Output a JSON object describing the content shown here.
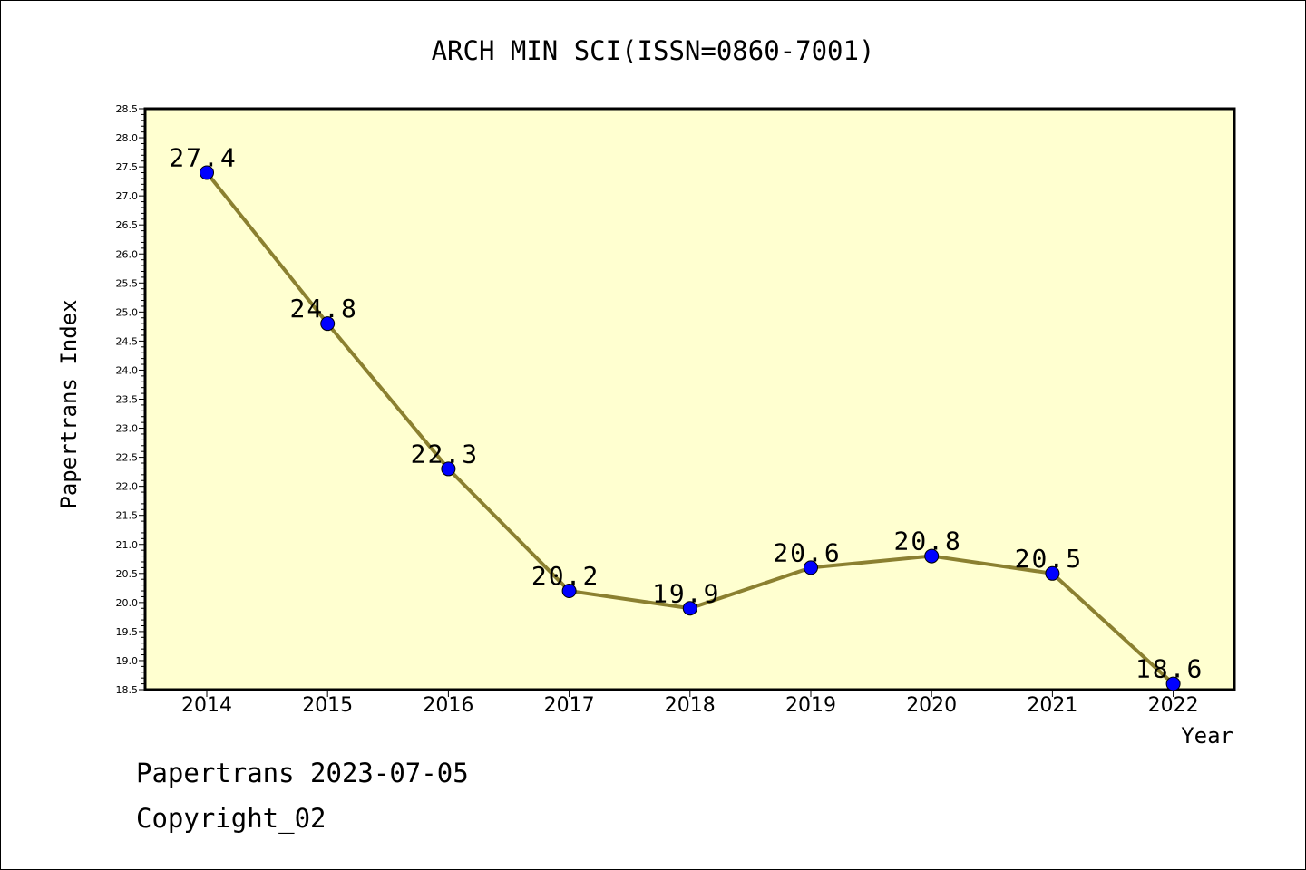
{
  "chart_data": {
    "type": "line",
    "title": "ARCH MIN SCI(ISSN=0860-7001)",
    "xlabel": "Year",
    "ylabel": "Papertrans Index",
    "x": [
      "2014",
      "2015",
      "2016",
      "2017",
      "2018",
      "2019",
      "2020",
      "2021",
      "2022"
    ],
    "series": [
      {
        "values": [
          27.4,
          24.8,
          22.3,
          20.2,
          19.9,
          20.6,
          20.8,
          20.5,
          18.6
        ],
        "labels": [
          "27.4",
          "24.8",
          "22.3",
          "20.2",
          "19.9",
          "20.6",
          "20.8",
          "20.5",
          "18.6"
        ]
      }
    ],
    "ylim": [
      18.5,
      28.5
    ],
    "yticks": [
      "18.5",
      "19.0",
      "19.5",
      "20.0",
      "20.5",
      "21.0",
      "21.5",
      "22.0",
      "22.5",
      "23.0",
      "23.5",
      "24.0",
      "24.5",
      "25.0",
      "25.5",
      "26.0",
      "26.5",
      "27.0",
      "27.5",
      "28.0",
      "28.5"
    ],
    "grid": false,
    "colors": {
      "plot_background": "#ffffd0",
      "line": "#8b8030",
      "marker": "#0000ff"
    }
  },
  "footer": {
    "line1": "Papertrans 2023-07-05",
    "line2": "Copyright_02"
  }
}
